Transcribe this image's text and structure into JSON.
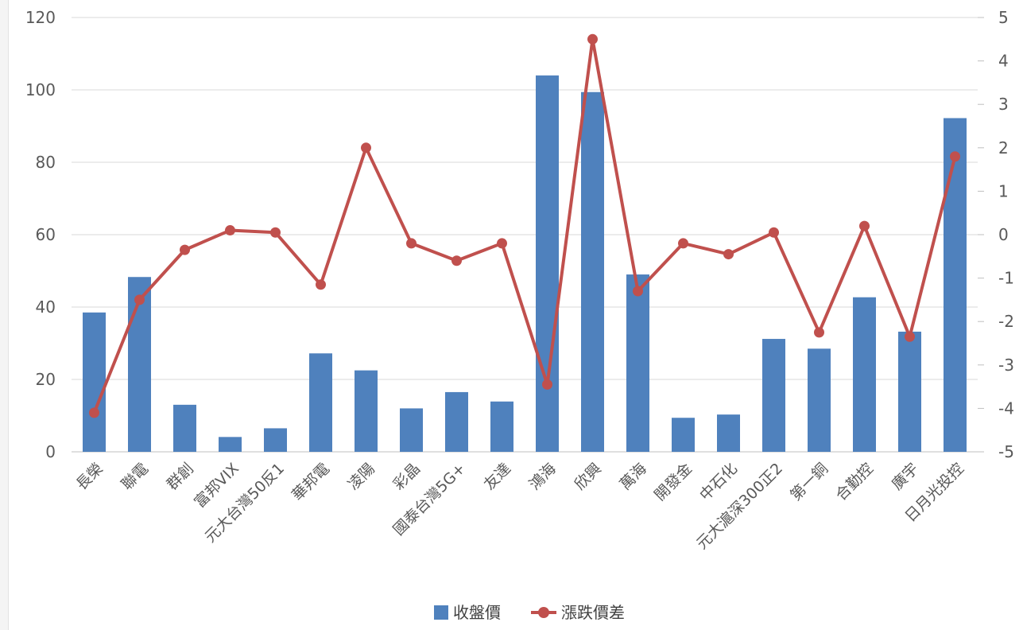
{
  "chart_data": {
    "type": "bar",
    "categories": [
      "長榮",
      "聯電",
      "群創",
      "富邦VIX",
      "元大台灣50反1",
      "華邦電",
      "凌陽",
      "彩晶",
      "國泰台灣5G+",
      "友達",
      "鴻海",
      "欣興",
      "萬海",
      "開發金",
      "中石化",
      "元大滬深300正2",
      "第一銅",
      "合勤控",
      "廣宇",
      "日月光投控"
    ],
    "series": [
      {
        "name": "收盤價",
        "type": "bar",
        "axis": "left",
        "color": "#4f81bd",
        "values": [
          38.5,
          48.3,
          13.0,
          4.1,
          6.5,
          27.2,
          22.5,
          12.0,
          16.5,
          13.9,
          104.0,
          99.4,
          49.0,
          9.4,
          10.3,
          31.2,
          28.5,
          42.7,
          33.2,
          92.2
        ]
      },
      {
        "name": "漲跌價差",
        "type": "line",
        "axis": "right",
        "color": "#c0504d",
        "values": [
          -4.1,
          -1.5,
          -0.35,
          0.1,
          0.05,
          -1.15,
          2.0,
          -0.2,
          -0.6,
          -0.2,
          -3.45,
          4.5,
          -1.3,
          -0.2,
          -0.45,
          0.05,
          -2.25,
          0.2,
          -2.35,
          1.8
        ]
      }
    ],
    "ylim_left": [
      0,
      120
    ],
    "yticks_left": [
      "0",
      "20",
      "40",
      "60",
      "80",
      "100",
      "120"
    ],
    "ylim_right": [
      -5,
      5
    ],
    "yticks_right": [
      "-5",
      "-4",
      "-3",
      "-2",
      "-1",
      "0",
      "1",
      "2",
      "3",
      "4",
      "5"
    ],
    "grid": true,
    "legend_position": "bottom-center"
  }
}
